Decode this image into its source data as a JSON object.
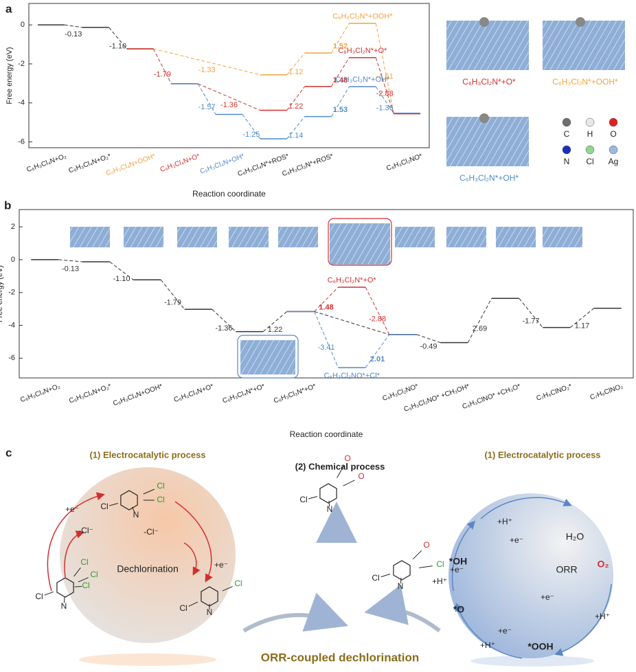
{
  "panels": [
    "a",
    "b",
    "c"
  ],
  "chart_data": [
    {
      "type": "energy_levels",
      "ylabel": "Free energy (eV)",
      "xlabel": "Reaction coordinate",
      "categories": [
        "C₆H₃Cl₄N+O₂",
        "C₆H₃Cl₄N+O₂*",
        "C₆H₃Cl₄N+OOH*",
        "C₆H₃Cl₄N+O*",
        "C₆H₃Cl₄N+OH*",
        "C₆H₃Cl₄N*+ROS*",
        "C₆H₃Cl₃N*+ROS*",
        null,
        "C₆H₃Cl₂NO*"
      ],
      "category_colors": [
        null,
        null,
        "#f0a33c",
        "#d22f2f",
        "#4f8ac9",
        null,
        null,
        null,
        null
      ],
      "ylim": [
        -6.3,
        1.1
      ],
      "yticks": [
        0,
        -2,
        -4,
        -6
      ],
      "series": [
        {
          "color": "#333333",
          "values": [
            0,
            -0.13,
            -1.23,
            null,
            null,
            null,
            null,
            null,
            null
          ],
          "step_labels": [
            null,
            "-0.13",
            "-1.10",
            null,
            null,
            null,
            null,
            null,
            null
          ]
        },
        {
          "color": "#f0a33c",
          "values": [
            null,
            null,
            -1.23,
            null,
            null,
            -2.56,
            -1.44,
            0.08,
            -4.53
          ],
          "step_labels": [
            null,
            null,
            null,
            null,
            null,
            "-1.33",
            "1.12",
            "1.52",
            "-4.61"
          ],
          "bold_step": 7,
          "level_labels": [
            null,
            null,
            null,
            null,
            null,
            null,
            null,
            "C₆H₃Cl₂N*+OOH*",
            null
          ],
          "label_side": "above"
        },
        {
          "color": "#d22f2f",
          "values": [
            null,
            null,
            -1.23,
            -3.02,
            null,
            -4.38,
            -3.16,
            -1.68,
            -4.56
          ],
          "step_labels": [
            null,
            null,
            null,
            "-1.79",
            null,
            "-1.36",
            "1.22",
            "1.48",
            "-2.88"
          ],
          "bold_step": 7,
          "level_labels": [
            null,
            null,
            null,
            null,
            null,
            null,
            null,
            "C₆H₃Cl₂N*+O*",
            null
          ],
          "label_side": "above"
        },
        {
          "color": "#4f8ac9",
          "values": [
            null,
            null,
            null,
            -3.02,
            -4.59,
            -5.84,
            -4.7,
            -3.17,
            -4.53
          ],
          "step_labels": [
            null,
            null,
            null,
            null,
            "-1.57",
            "-1.25",
            "1.14",
            "1.53",
            "-1.36"
          ],
          "bold_step": 7,
          "level_labels": [
            null,
            null,
            null,
            null,
            null,
            null,
            null,
            "C₆H₃Cl₂N*+OH*",
            null
          ],
          "label_side": "above"
        }
      ]
    },
    {
      "type": "energy_levels",
      "ylabel": "Free energy (eV)",
      "xlabel": "Reaction coordinate",
      "categories": [
        "C₆H₃Cl₄N+O₂",
        "C₆H₃Cl₄N+O₂*",
        "C₆H₃Cl₄N+OOH*",
        "C₆H₃Cl₄N+O*",
        "C₆H₃Cl₄N*+O*",
        "C₆H₃Cl₃N*+O*",
        null,
        "C₆H₃Cl₂NO*",
        "C₆H₃Cl₂NO* +CH₃OH*",
        "C₆H₃ClNO* +CH₃O*",
        "C₇H₆ClNO₂*",
        "C₇H₆ClNO₂"
      ],
      "category_colors": [
        null,
        null,
        null,
        null,
        null,
        null,
        null,
        null,
        null,
        null,
        null,
        null
      ],
      "ylim": [
        -7.2,
        3.05
      ],
      "yticks": [
        2,
        0,
        -2,
        -4,
        -6
      ],
      "series": [
        {
          "color": "#333333",
          "values": [
            0,
            -0.13,
            -1.23,
            -3.02,
            -4.38,
            -3.16,
            null,
            -4.56,
            -5.05,
            -2.36,
            -4.13,
            -2.96
          ],
          "step_labels": [
            null,
            "-0.13",
            "-1.10",
            "-1.79",
            "-1.36",
            "1.22",
            null,
            null,
            "-0.49",
            "2.69",
            "-1.77",
            "1.17"
          ]
        },
        {
          "color": "#d22f2f",
          "values": [
            null,
            null,
            null,
            null,
            null,
            -3.16,
            -1.68,
            -4.56,
            null,
            null,
            null,
            null
          ],
          "step_labels": [
            null,
            null,
            null,
            null,
            null,
            null,
            "1.48",
            "-2.88",
            null,
            null,
            null,
            null
          ],
          "bold_step": 6,
          "level_labels": [
            null,
            null,
            null,
            null,
            null,
            null,
            "C₆H₃Cl₂N*+O*",
            null,
            null,
            null,
            null,
            null
          ],
          "label_side": "above"
        },
        {
          "color": "#4f8ac9",
          "values": [
            null,
            null,
            null,
            null,
            null,
            -3.16,
            -6.57,
            -4.56,
            null,
            null,
            null,
            null
          ],
          "step_labels": [
            null,
            null,
            null,
            null,
            null,
            null,
            "-3.41",
            "2.01",
            null,
            null,
            null,
            null
          ],
          "bold_step": 7,
          "level_labels": [
            null,
            null,
            null,
            null,
            null,
            null,
            "C₆H₃Cl₂NO*+Cl*",
            null,
            null,
            null,
            null,
            null
          ],
          "label_side": "below"
        }
      ]
    }
  ],
  "structures_a": [
    "C₆H₃Cl₂N*+O*",
    "C₆H₃Cl₂N*+OOH*",
    "C₆H₃Cl₂N*+OH*"
  ],
  "structure_colors": [
    "#d22f2f",
    "#f0a33c",
    "#4f8ac9"
  ],
  "atom_legend": [
    {
      "symbol": "C",
      "color": "#6e6e6e"
    },
    {
      "symbol": "H",
      "color": "#e8e8e8"
    },
    {
      "symbol": "O",
      "color": "#e02020"
    },
    {
      "symbol": "N",
      "color": "#1a2fbf"
    },
    {
      "symbol": "Cl",
      "color": "#8fd88f"
    },
    {
      "symbol": "Ag",
      "color": "#9ab8e0"
    }
  ],
  "diagram": {
    "left_title": "(1) Electrocatalytic process",
    "center_title": "(2) Chemical process",
    "right_title": "(1) Electrocatalytic process",
    "left_cycle": "Dechlorination",
    "right_cycle": "ORR",
    "caption": "ORR-coupled dechlorination",
    "left_steps": [
      "+e⁻",
      "-Cl⁻",
      "-Cl⁻",
      "+e⁻"
    ],
    "right_labels": [
      "+H⁺",
      "+e⁻",
      "H₂O",
      "*OH",
      "O₂",
      "+e⁻",
      "+H⁺",
      "+e⁻",
      "+H⁺",
      "*O",
      "+e⁻",
      "+H⁺",
      "*OOH"
    ],
    "molecules": [
      {
        "atoms": [
          {
            "text": "Cl",
            "color": "#222222"
          },
          {
            "text": "N",
            "color": "#222222"
          },
          {
            "text": "Cl",
            "color": "#2a9a2a"
          },
          {
            "text": "Cl",
            "color": "#2a9a2a"
          }
        ]
      },
      {
        "atoms": [
          {
            "text": "Cl",
            "color": "#222222"
          },
          {
            "text": "N",
            "color": "#222222"
          },
          {
            "text": "Cl",
            "color": "#2a9a2a"
          },
          {
            "text": "Cl",
            "color": "#2a9a2a"
          },
          {
            "text": "Cl",
            "color": "#2a9a2a"
          }
        ]
      },
      {
        "atoms": [
          {
            "text": "Cl",
            "color": "#222222"
          },
          {
            "text": "N",
            "color": "#222222"
          },
          {
            "text": "Cl",
            "color": "#2a9a2a"
          }
        ]
      },
      {
        "atoms": [
          {
            "text": "Cl",
            "color": "#222222"
          },
          {
            "text": "N",
            "color": "#222222"
          },
          {
            "text": "O",
            "color": "#d22f2f"
          },
          {
            "text": "O",
            "color": "#d22f2f"
          }
        ]
      },
      {
        "atoms": [
          {
            "text": "Cl",
            "color": "#222222"
          },
          {
            "text": "N",
            "color": "#222222"
          },
          {
            "text": "O",
            "color": "#d22f2f"
          },
          {
            "text": "Cl",
            "color": "#2a9a2a"
          }
        ]
      }
    ]
  }
}
